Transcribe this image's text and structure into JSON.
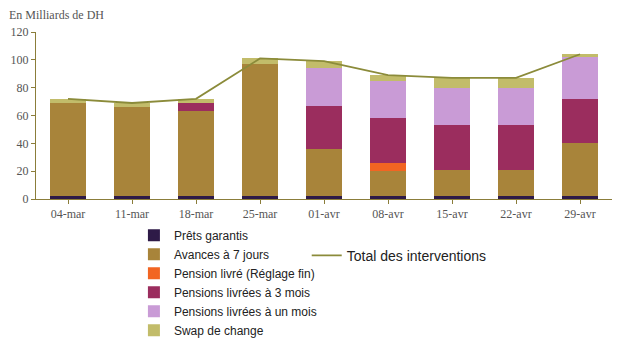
{
  "chart_data": {
    "type": "bar",
    "stacked": true,
    "ylabel": "En Milliards de DH",
    "categories": [
      "04-mar",
      "11-mar",
      "18-mar",
      "25-mar",
      "01-avr",
      "08-avr",
      "15-avr",
      "22-avr",
      "29-avr"
    ],
    "ylim": [
      0,
      120
    ],
    "yticks": [
      0,
      20,
      40,
      60,
      80,
      100,
      120
    ],
    "grid": false,
    "legend": "bottom",
    "series": [
      {
        "name": "Prêts garantis",
        "color": "#2e1a47",
        "values": [
          2,
          2,
          2,
          2,
          2,
          2,
          2,
          2,
          2
        ]
      },
      {
        "name": "Avances à 7 jours",
        "color": "#a8843a",
        "values": [
          67,
          64,
          61,
          95,
          34,
          18,
          19,
          19,
          38
        ]
      },
      {
        "name": "Pension livré (Réglage fin)",
        "color": "#f26522",
        "values": [
          0,
          0,
          0,
          0,
          0,
          6,
          0,
          0,
          0
        ]
      },
      {
        "name": "Pensions livrées à 3 mois",
        "color": "#9b2d5e",
        "values": [
          0,
          0,
          6,
          0,
          31,
          32,
          32,
          32,
          32
        ]
      },
      {
        "name": "Pensions livrées à un mois",
        "color": "#c99bd6",
        "values": [
          0,
          0,
          0,
          0,
          27,
          27,
          27,
          27,
          30
        ]
      },
      {
        "name": "Swap de change",
        "color": "#c2bc6a",
        "values": [
          3,
          3,
          3,
          4,
          5,
          4,
          7,
          7,
          2
        ]
      },
      {
        "name": "Total des interventions",
        "type": "line",
        "color": "#8b8b3a",
        "values": [
          72,
          69,
          72,
          101,
          99,
          89,
          87,
          87,
          104
        ]
      }
    ]
  }
}
